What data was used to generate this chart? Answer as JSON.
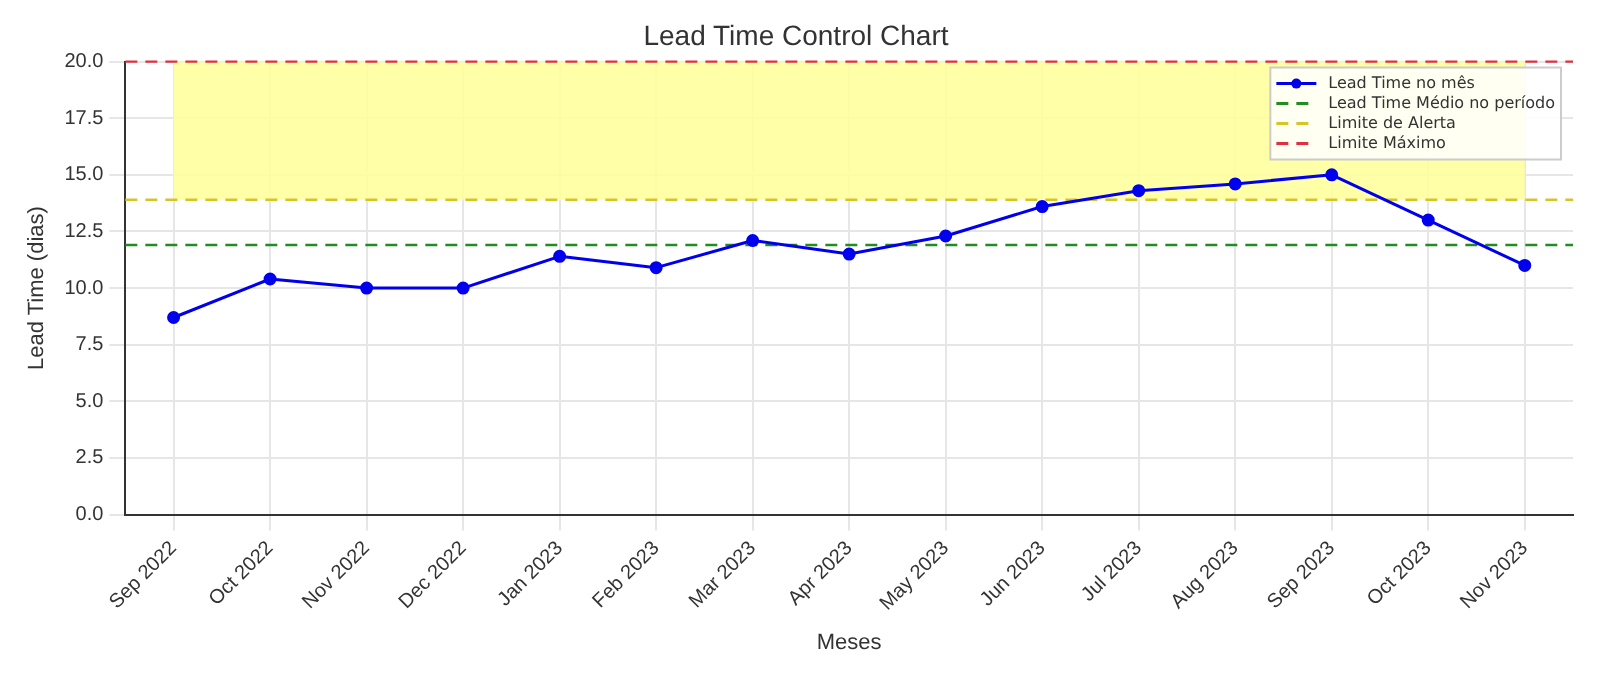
{
  "chart_data": {
    "type": "line",
    "title": "Lead Time Control Chart",
    "xlabel": "Meses",
    "ylabel": "Lead Time (dias)",
    "categories": [
      "Sep 2022",
      "Oct 2022",
      "Nov 2022",
      "Dec 2022",
      "Jan 2023",
      "Feb 2023",
      "Mar 2023",
      "Apr 2023",
      "May 2023",
      "Jun 2023",
      "Jul 2023",
      "Aug 2023",
      "Sep 2023",
      "Oct 2023",
      "Nov 2023"
    ],
    "series": [
      {
        "name": "Lead Time no mês",
        "color": "#0000ee",
        "values": [
          8.7,
          10.4,
          10.0,
          10.0,
          11.4,
          10.9,
          12.1,
          11.5,
          12.3,
          13.6,
          14.3,
          14.6,
          15.0,
          13.0,
          11.0
        ]
      }
    ],
    "ref_lines": [
      {
        "axis": "y",
        "value": 11.9,
        "label": "Lead Time Médio no período",
        "color": "#228b22",
        "line_style": "dashed"
      },
      {
        "axis": "y",
        "value": 13.9,
        "label": "Limite de Alerta",
        "color": "#d4c62a",
        "line_style": "dashed"
      },
      {
        "axis": "y",
        "value": 20,
        "label": "Limite Máximo",
        "color": "#e03040",
        "line_style": "dashed"
      }
    ],
    "bands": [
      {
        "axis": "y",
        "from": 13.9,
        "to": 20,
        "color": "#ffff99"
      }
    ],
    "ylim": [
      0,
      20
    ],
    "yticks": [
      {
        "value": 0,
        "label": "0.0"
      },
      {
        "value": 2.5,
        "label": "2.5"
      },
      {
        "value": 5,
        "label": "5.0"
      },
      {
        "value": 7.5,
        "label": "7.5"
      },
      {
        "value": 10,
        "label": "10.0"
      },
      {
        "value": 12.5,
        "label": "12.5"
      },
      {
        "value": 15,
        "label": "15.0"
      },
      {
        "value": 17.5,
        "label": "17.5"
      },
      {
        "value": 20,
        "label": "20.0"
      }
    ],
    "grid": true,
    "legend": "top right",
    "marker": "circle",
    "line_style": "solid"
  }
}
